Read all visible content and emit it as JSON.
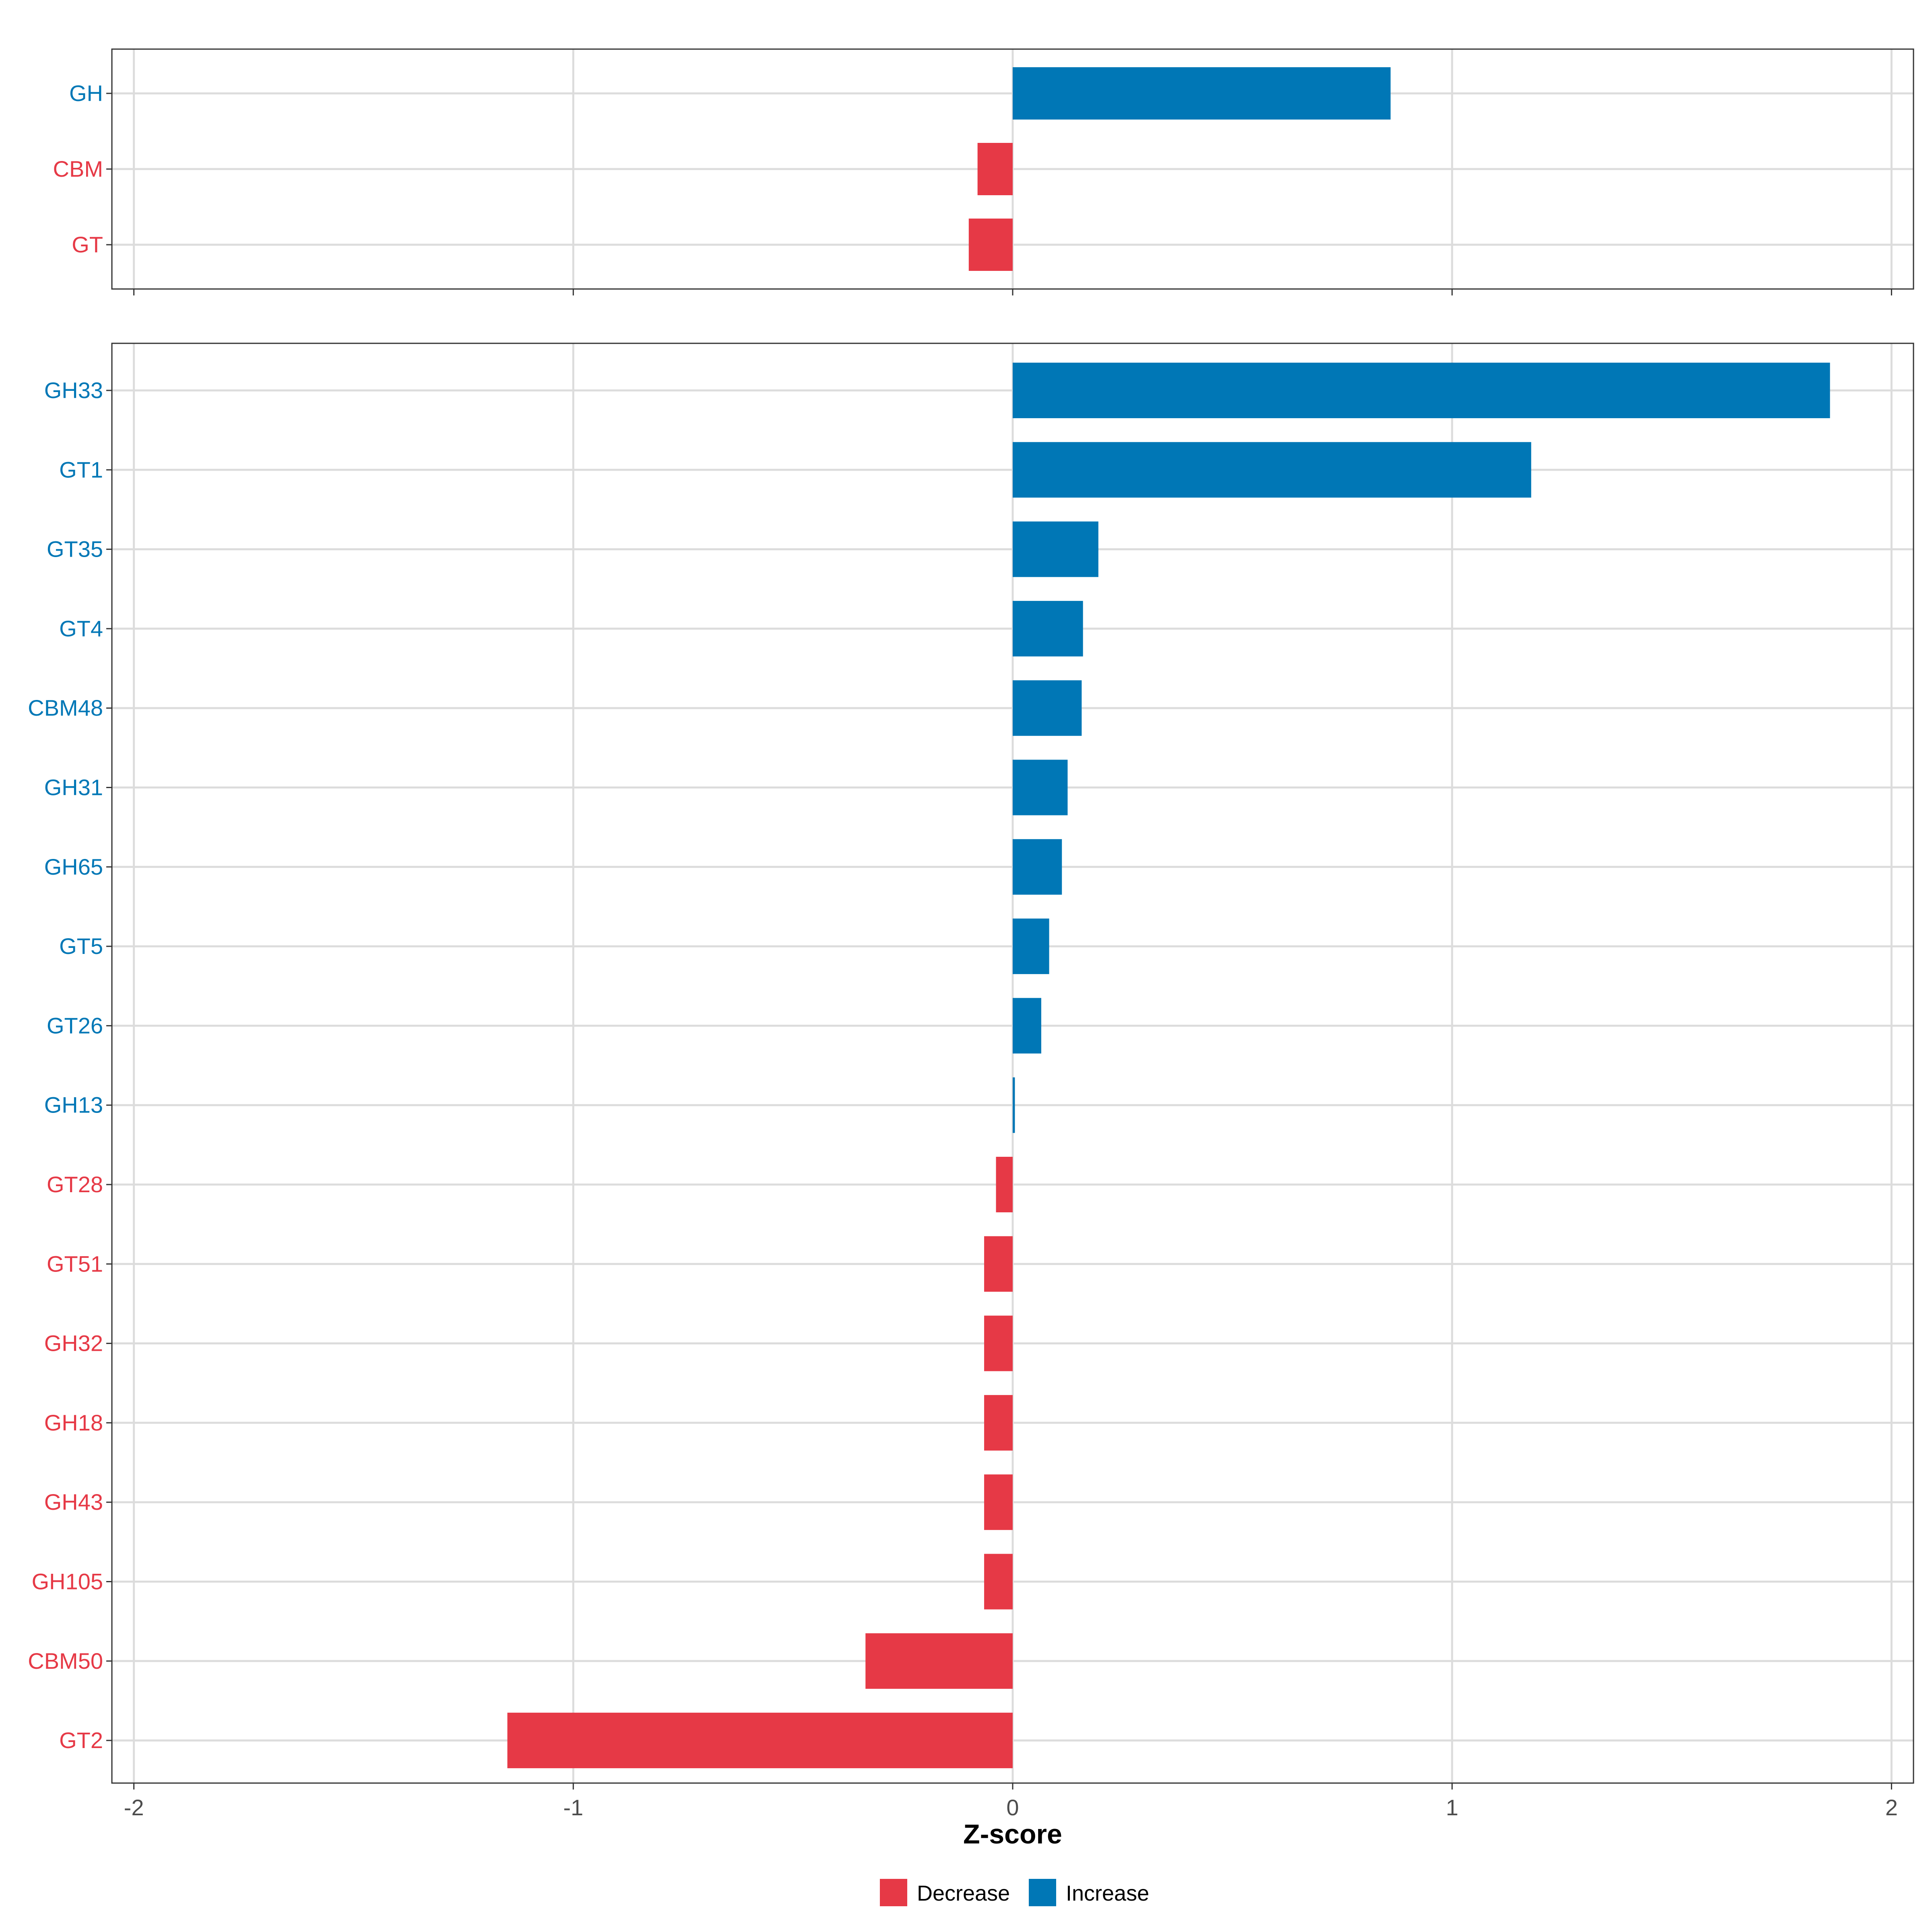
{
  "chart_data": [
    {
      "type": "bar",
      "orientation": "horizontal",
      "panel": "top",
      "categories": [
        "GH",
        "CBM",
        "GT"
      ],
      "values": [
        0.86,
        -0.08,
        -0.1
      ],
      "xlim": [
        -2.05,
        2.05
      ],
      "xticks": [
        -2,
        -1,
        0,
        1,
        2
      ],
      "grid": true
    },
    {
      "type": "bar",
      "orientation": "horizontal",
      "panel": "bottom",
      "categories": [
        "GH33",
        "GT1",
        "GT35",
        "GT4",
        "CBM48",
        "GH31",
        "GH65",
        "GT5",
        "GT26",
        "GH13",
        "GT28",
        "GT51",
        "GH32",
        "GH18",
        "GH43",
        "GH105",
        "CBM50",
        "GT2"
      ],
      "values": [
        1.86,
        1.18,
        0.195,
        0.16,
        0.157,
        0.125,
        0.112,
        0.083,
        0.065,
        0.005,
        -0.038,
        -0.065,
        -0.065,
        -0.065,
        -0.065,
        -0.065,
        -0.335,
        -1.15
      ],
      "xlim": [
        -2.05,
        2.05
      ],
      "xticks": [
        -2,
        -1,
        0,
        1,
        2
      ],
      "xtick_labels": [
        "-2",
        "-1",
        "0",
        "1",
        "2"
      ],
      "xlabel": "Z-score",
      "grid": true
    }
  ],
  "legend": {
    "placement": "bottom-center",
    "items": [
      {
        "label": "Decrease",
        "color": "#E63946"
      },
      {
        "label": "Increase",
        "color": "#0077B6"
      }
    ]
  },
  "colors": {
    "decrease": "#E63946",
    "increase": "#0077B6"
  }
}
